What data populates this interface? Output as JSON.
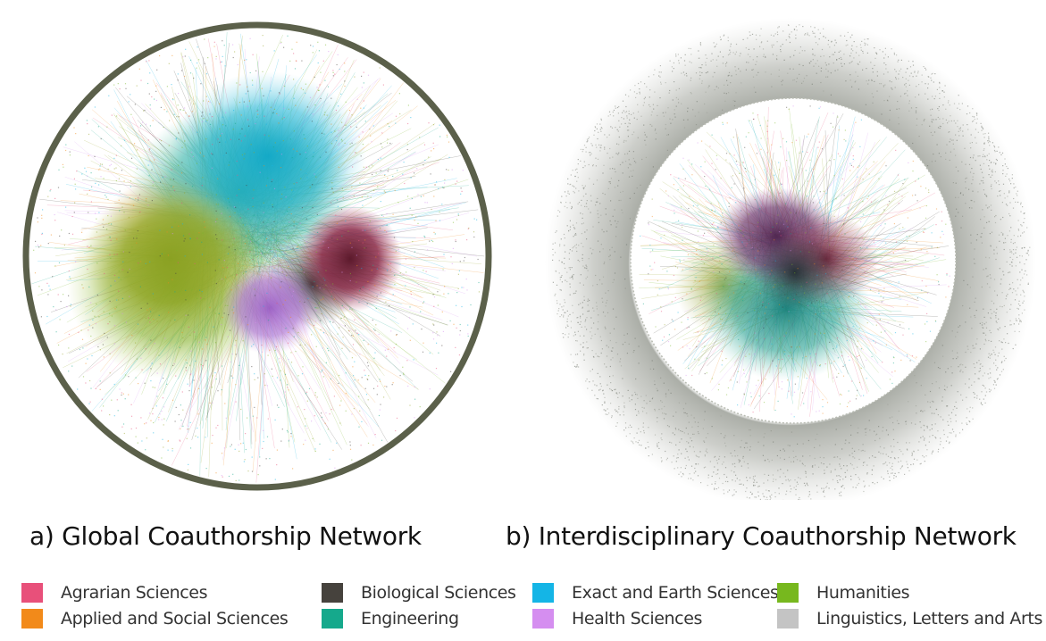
{
  "panels": {
    "a": {
      "caption": "a) Global Coauthorship Network"
    },
    "b": {
      "caption": "b) Interdisciplinary Coauthorship Network"
    }
  },
  "legend": {
    "items": [
      {
        "label": "Agrarian Sciences",
        "color": "#e8507a"
      },
      {
        "label": "Applied and Social Sciences",
        "color": "#f28a1a"
      },
      {
        "label": "Biological Sciences",
        "color": "#46423d"
      },
      {
        "label": "Engineering",
        "color": "#15a98c"
      },
      {
        "label": "Exact and Earth Sciences",
        "color": "#14b5e6"
      },
      {
        "label": "Health Sciences",
        "color": "#d58ef0"
      },
      {
        "label": "Humanities",
        "color": "#77b81e"
      },
      {
        "label": "Linguistics, Letters and Arts",
        "color": "#c4c4c4"
      }
    ]
  }
}
